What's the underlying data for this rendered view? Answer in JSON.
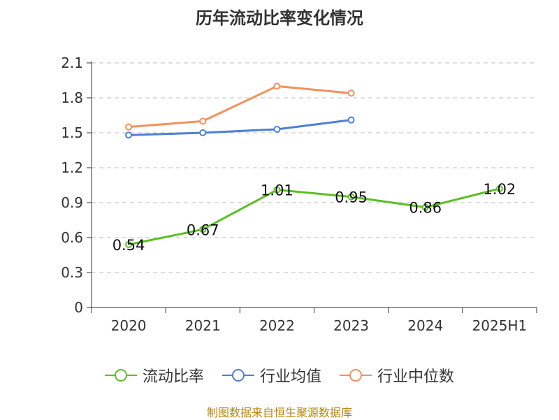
{
  "title": "历年流动比率变化情况",
  "source_note": "制图数据来自恒生聚源数据库",
  "chart_data": {
    "type": "line",
    "title": "历年流动比率变化情况",
    "categories": [
      "2020",
      "2021",
      "2022",
      "2023",
      "2024",
      "2025H1"
    ],
    "ylim": [
      0,
      2.1
    ],
    "yticks": [
      "0",
      "0.3",
      "0.6",
      "0.9",
      "1.2",
      "1.5",
      "1.8",
      "2.1"
    ],
    "grid": true,
    "legend_position": "bottom",
    "series": [
      {
        "name": "流动比率",
        "color": "#5cbf26",
        "values": [
          0.54,
          0.67,
          1.01,
          0.95,
          0.86,
          1.02
        ],
        "labels": [
          "0.54",
          "0.67",
          "1.01",
          "0.95",
          "0.86",
          "1.02"
        ]
      },
      {
        "name": "行业均值",
        "color": "#4f7fd6",
        "values": [
          1.48,
          1.5,
          1.53,
          1.61,
          null,
          null
        ]
      },
      {
        "name": "行业中位数",
        "color": "#f5905a",
        "values": [
          1.55,
          1.6,
          1.9,
          1.84,
          null,
          null
        ]
      }
    ]
  }
}
